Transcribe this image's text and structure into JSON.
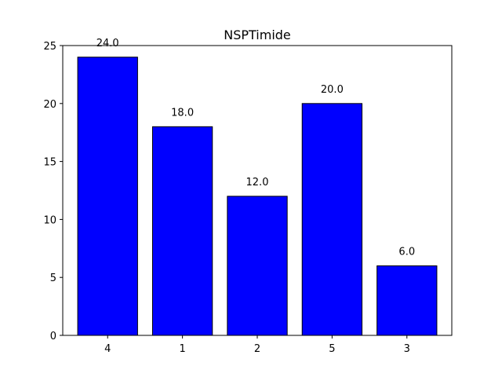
{
  "chart_data": {
    "type": "bar",
    "title": "NSPTimide",
    "xlabel": "",
    "ylabel": "",
    "categories": [
      "4",
      "1",
      "2",
      "5",
      "3"
    ],
    "values": [
      24,
      18,
      12,
      20,
      6
    ],
    "data_labels": [
      "24.0",
      "18.0",
      "12.0",
      "20.0",
      "6.0"
    ],
    "ylim": [
      0,
      25
    ],
    "yticks": [
      0,
      5,
      10,
      15,
      20,
      25
    ],
    "grid": false,
    "legend": "none",
    "bar_color": "#0000ff",
    "bar_edge_color": "#000000"
  }
}
